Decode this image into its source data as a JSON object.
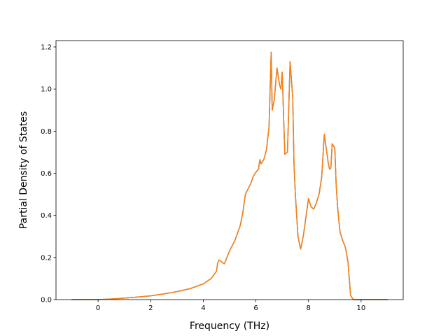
{
  "chart_data": {
    "type": "line",
    "title": "",
    "xlabel": "Frequency (THz)",
    "ylabel": "Partial Density of States",
    "xlim": [
      -1.6,
      11.6
    ],
    "ylim": [
      0.0,
      1.23
    ],
    "xticks": [
      0,
      2,
      4,
      6,
      8,
      10
    ],
    "yticks": [
      0.0,
      0.2,
      0.4,
      0.6,
      0.8,
      1.0,
      1.2
    ],
    "xtick_labels": [
      "0",
      "2",
      "4",
      "6",
      "8",
      "10"
    ],
    "ytick_labels": [
      "0.0",
      "0.2",
      "0.4",
      "0.6",
      "0.8",
      "1.0",
      "1.2"
    ],
    "grid": false,
    "legend": "none",
    "series": [
      {
        "color": "#1f77b4",
        "x": [
          -1.0,
          0.0,
          0.5,
          1.0,
          1.5,
          2.0,
          2.5,
          3.0,
          3.5,
          4.0,
          4.3,
          4.5,
          4.55,
          4.6,
          4.8,
          4.9,
          5.0,
          5.2,
          5.4,
          5.5,
          5.6,
          5.8,
          5.9,
          6.0,
          6.1,
          6.15,
          6.2,
          6.3,
          6.4,
          6.5,
          6.58,
          6.62,
          6.7,
          6.8,
          6.9,
          6.95,
          7.0,
          7.05,
          7.1,
          7.2,
          7.3,
          7.4,
          7.45,
          7.5,
          7.55,
          7.6,
          7.7,
          7.8,
          7.9,
          8.0,
          8.1,
          8.2,
          8.3,
          8.4,
          8.5,
          8.6,
          8.75,
          8.8,
          8.85,
          8.9,
          9.0,
          9.05,
          9.1,
          9.15,
          9.2,
          9.3,
          9.4,
          9.5,
          9.55,
          9.6,
          9.7,
          9.8,
          9.9,
          10.0,
          11.0
        ],
        "y": [
          0.0,
          0.0,
          0.003,
          0.007,
          0.012,
          0.018,
          0.027,
          0.038,
          0.052,
          0.075,
          0.1,
          0.135,
          0.175,
          0.188,
          0.17,
          0.2,
          0.232,
          0.28,
          0.35,
          0.41,
          0.5,
          0.55,
          0.585,
          0.605,
          0.62,
          0.665,
          0.645,
          0.665,
          0.71,
          0.82,
          1.175,
          0.9,
          0.95,
          1.1,
          1.02,
          1.0,
          1.08,
          0.88,
          0.69,
          0.7,
          1.13,
          0.96,
          0.64,
          0.5,
          0.4,
          0.3,
          0.24,
          0.3,
          0.39,
          0.48,
          0.44,
          0.43,
          0.46,
          0.5,
          0.58,
          0.785,
          0.65,
          0.62,
          0.625,
          0.74,
          0.72,
          0.55,
          0.45,
          0.38,
          0.32,
          0.28,
          0.25,
          0.18,
          0.1,
          0.02,
          0.0,
          0.0,
          0.0,
          0.0,
          0.0
        ]
      },
      {
        "color": "#ff7f0e",
        "x": [
          -1.0,
          0.0,
          0.5,
          1.0,
          1.5,
          2.0,
          2.5,
          3.0,
          3.5,
          4.0,
          4.3,
          4.5,
          4.55,
          4.6,
          4.8,
          4.9,
          5.0,
          5.2,
          5.4,
          5.5,
          5.6,
          5.8,
          5.9,
          6.0,
          6.1,
          6.15,
          6.2,
          6.3,
          6.4,
          6.5,
          6.58,
          6.62,
          6.7,
          6.8,
          6.9,
          6.95,
          7.0,
          7.05,
          7.1,
          7.2,
          7.3,
          7.4,
          7.45,
          7.5,
          7.55,
          7.6,
          7.7,
          7.8,
          7.9,
          8.0,
          8.1,
          8.2,
          8.3,
          8.4,
          8.5,
          8.6,
          8.75,
          8.8,
          8.85,
          8.9,
          9.0,
          9.05,
          9.1,
          9.15,
          9.2,
          9.3,
          9.4,
          9.5,
          9.55,
          9.6,
          9.7,
          9.8,
          9.9,
          10.0,
          11.0
        ],
        "y": [
          0.0,
          0.0,
          0.003,
          0.007,
          0.012,
          0.018,
          0.027,
          0.038,
          0.052,
          0.075,
          0.1,
          0.135,
          0.175,
          0.188,
          0.17,
          0.2,
          0.232,
          0.28,
          0.35,
          0.41,
          0.5,
          0.55,
          0.585,
          0.605,
          0.62,
          0.665,
          0.645,
          0.665,
          0.71,
          0.82,
          1.175,
          0.9,
          0.95,
          1.1,
          1.02,
          1.0,
          1.08,
          0.88,
          0.69,
          0.7,
          1.13,
          0.96,
          0.64,
          0.5,
          0.4,
          0.3,
          0.24,
          0.3,
          0.39,
          0.48,
          0.44,
          0.43,
          0.46,
          0.5,
          0.58,
          0.785,
          0.65,
          0.62,
          0.625,
          0.74,
          0.72,
          0.55,
          0.45,
          0.38,
          0.32,
          0.28,
          0.25,
          0.18,
          0.1,
          0.02,
          0.0,
          0.0,
          0.0,
          0.0,
          0.0
        ]
      }
    ]
  }
}
